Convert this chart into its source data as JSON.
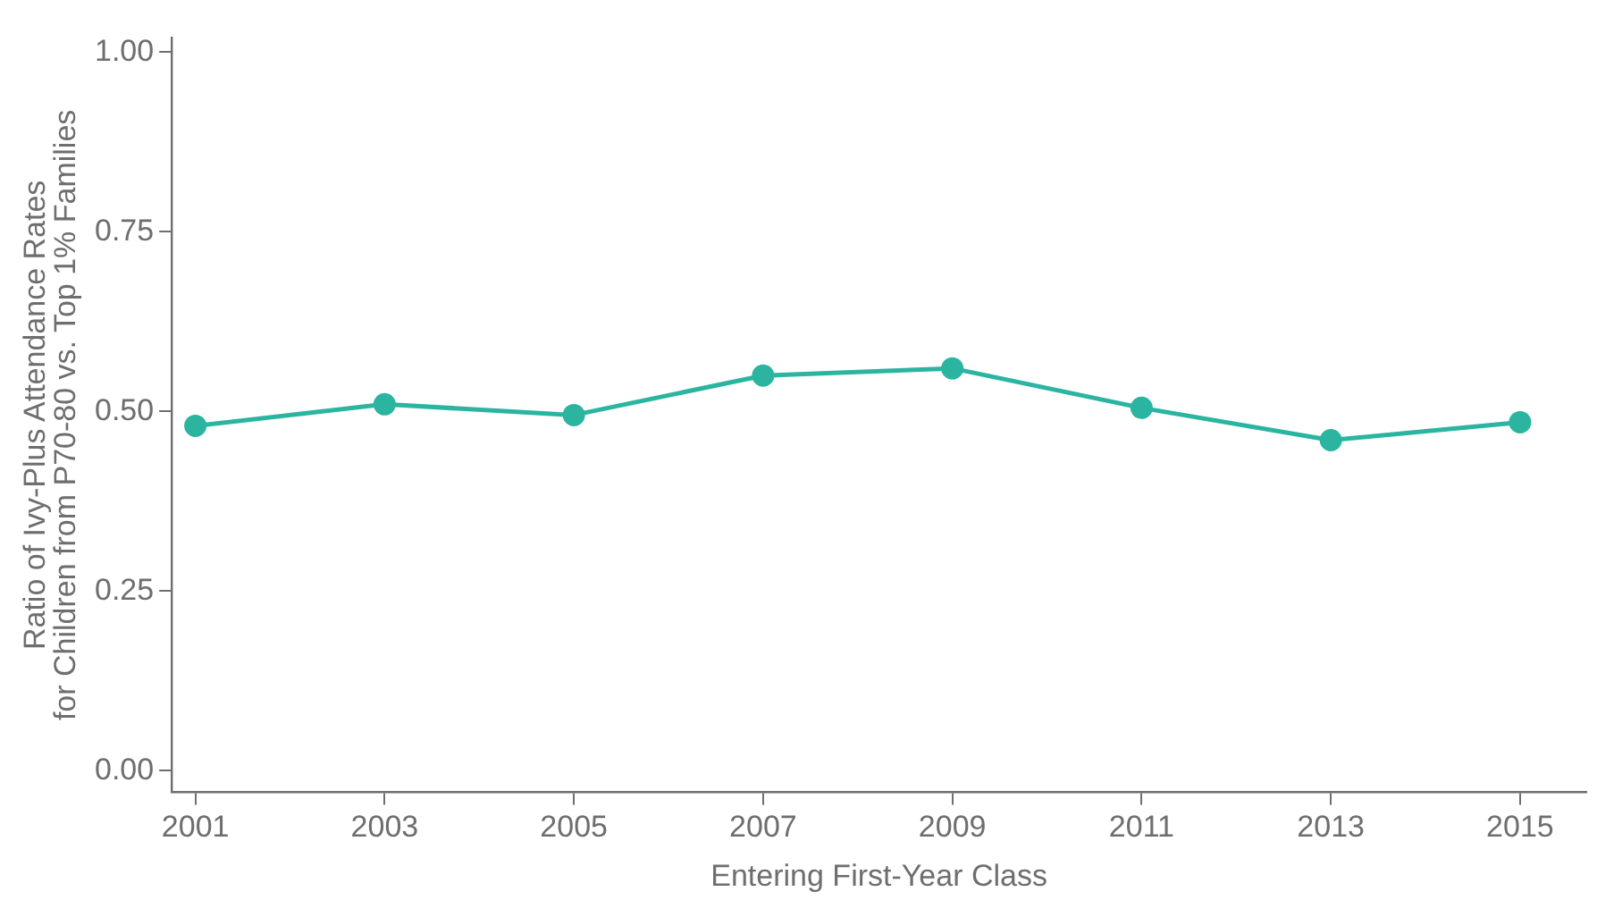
{
  "chart_data": {
    "type": "line",
    "xlabel": "Entering First-Year Class",
    "ylabel": "Ratio of Ivy-Plus Attendance Rates\nfor Children from P70-80 vs. Top 1% Families",
    "x": [
      2001,
      2003,
      2005,
      2007,
      2009,
      2011,
      2013,
      2015
    ],
    "series": [
      {
        "color": "#2bb5a0",
        "values": [
          0.48,
          0.51,
          0.495,
          0.55,
          0.56,
          0.505,
          0.46,
          0.485
        ]
      }
    ],
    "xlim": [
      2000.75,
      2015.7
    ],
    "ylim": [
      -0.03,
      1.02
    ],
    "xticks": [
      2001,
      2003,
      2005,
      2007,
      2009,
      2011,
      2013,
      2015
    ],
    "yticks": [
      {
        "value": 0,
        "label": "0.00"
      },
      {
        "value": 0.25,
        "label": "0.25"
      },
      {
        "value": 0.5,
        "label": "0.50"
      },
      {
        "value": 0.75,
        "label": "0.75"
      },
      {
        "value": 1,
        "label": "1.00"
      }
    ],
    "grid": false,
    "legend": false,
    "marker": "circle",
    "line_style": "solid"
  }
}
